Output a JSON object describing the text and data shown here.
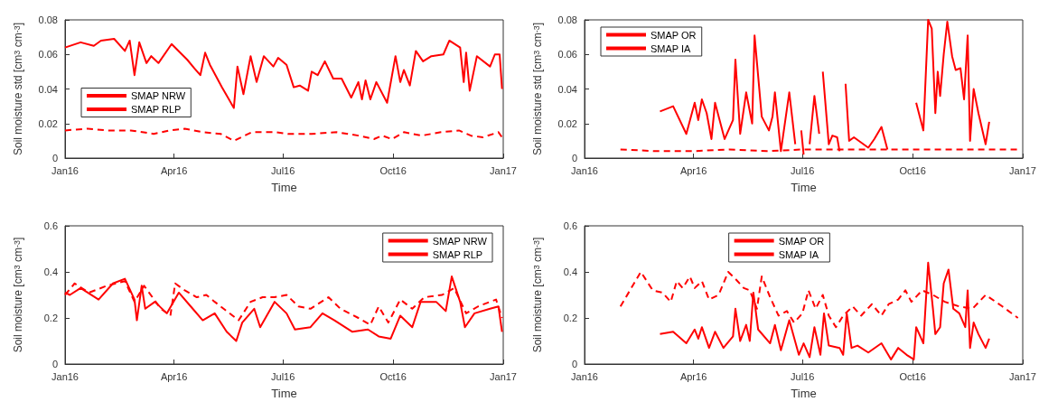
{
  "chart_data": [
    {
      "type": "line",
      "xlabel": "Time",
      "ylabel": "Soil moisture std [cm$^{3}$ cm$^{-3}$]",
      "xlim": [
        "2016-01-01",
        "2017-01-01"
      ],
      "xticks": [
        {
          "value": "2016-01-01",
          "label": "Jan16"
        },
        {
          "value": "2016-04-01",
          "label": "Apr16"
        },
        {
          "value": "2016-07-01",
          "label": "Jul16"
        },
        {
          "value": "2016-10-01",
          "label": "Oct16"
        },
        {
          "value": "2017-01-01",
          "label": "Jan17"
        }
      ],
      "ylim": [
        0,
        0.08
      ],
      "yticks": [
        0,
        0.02,
        0.04,
        0.06,
        0.08
      ],
      "legend": "left",
      "grid": false,
      "marker": "none",
      "series": [
        {
          "name": "SMAP NRW",
          "color": "#ff0000",
          "line_style": "solid",
          "x": [
            "2016-01-01",
            "2016-01-14",
            "2016-01-25",
            "2016-01-31",
            "2016-02-11",
            "2016-02-20",
            "2016-02-24",
            "2016-02-28",
            "2016-03-03",
            "2016-03-09",
            "2016-03-13",
            "2016-03-19",
            "2016-03-30",
            "2016-04-12",
            "2016-04-18",
            "2016-04-23",
            "2016-04-27",
            "2016-05-01",
            "2016-05-11",
            "2016-05-21",
            "2016-05-24",
            "2016-05-29",
            "2016-06-04",
            "2016-06-09",
            "2016-06-15",
            "2016-06-23",
            "2016-06-27",
            "2016-07-04",
            "2016-07-10",
            "2016-07-15",
            "2016-07-22",
            "2016-07-25",
            "2016-07-30",
            "2016-08-05",
            "2016-08-12",
            "2016-08-19",
            "2016-08-27",
            "2016-09-02",
            "2016-09-05",
            "2016-09-08",
            "2016-09-12",
            "2016-09-17",
            "2016-09-26",
            "2016-10-03",
            "2016-10-07",
            "2016-10-10",
            "2016-10-15",
            "2016-10-20",
            "2016-10-26",
            "2016-11-02",
            "2016-11-12",
            "2016-11-17",
            "2016-11-26",
            "2016-11-29",
            "2016-12-01",
            "2016-12-04",
            "2016-12-10",
            "2016-12-21",
            "2016-12-25",
            "2016-12-29",
            "2016-12-31"
          ],
          "values": [
            0.064,
            0.067,
            0.065,
            0.068,
            0.069,
            0.062,
            0.068,
            0.048,
            0.067,
            0.055,
            0.059,
            0.055,
            0.066,
            0.057,
            0.052,
            0.048,
            0.061,
            0.054,
            0.041,
            0.029,
            0.053,
            0.037,
            0.059,
            0.044,
            0.059,
            0.053,
            0.058,
            0.054,
            0.041,
            0.042,
            0.039,
            0.05,
            0.048,
            0.056,
            0.046,
            0.046,
            0.035,
            0.044,
            0.034,
            0.045,
            0.034,
            0.044,
            0.032,
            0.059,
            0.044,
            0.051,
            0.042,
            0.062,
            0.056,
            0.059,
            0.06,
            0.068,
            0.064,
            0.044,
            0.061,
            0.039,
            0.059,
            0.053,
            0.06,
            0.06,
            0.04
          ]
        },
        {
          "name": "SMAP RLP",
          "color": "#ff0000",
          "line_style": "dashed",
          "x": [
            "2016-01-01",
            "2016-01-20",
            "2016-02-05",
            "2016-02-25",
            "2016-03-15",
            "2016-03-28",
            "2016-04-10",
            "2016-04-25",
            "2016-05-10",
            "2016-05-21",
            "2016-06-05",
            "2016-06-25",
            "2016-07-05",
            "2016-07-25",
            "2016-08-15",
            "2016-09-02",
            "2016-09-15",
            "2016-09-22",
            "2016-09-30",
            "2016-10-10",
            "2016-10-25",
            "2016-11-10",
            "2016-11-25",
            "2016-12-05",
            "2016-12-15",
            "2016-12-28",
            "2016-12-31"
          ],
          "values": [
            0.016,
            0.017,
            0.016,
            0.016,
            0.014,
            0.016,
            0.017,
            0.015,
            0.014,
            0.01,
            0.015,
            0.015,
            0.014,
            0.014,
            0.015,
            0.013,
            0.011,
            0.013,
            0.011,
            0.015,
            0.013,
            0.015,
            0.016,
            0.013,
            0.012,
            0.015,
            0.012
          ]
        }
      ]
    },
    {
      "type": "line",
      "xlabel": "Time",
      "ylabel": "Soil moisture std [cm$^{3}$ cm$^{-3}$]",
      "xlim": [
        "2016-01-01",
        "2017-01-01"
      ],
      "xticks": [
        {
          "value": "2016-01-01",
          "label": "Jan16"
        },
        {
          "value": "2016-04-01",
          "label": "Apr16"
        },
        {
          "value": "2016-07-01",
          "label": "Jul16"
        },
        {
          "value": "2016-10-01",
          "label": "Oct16"
        },
        {
          "value": "2017-01-01",
          "label": "Jan17"
        }
      ],
      "ylim": [
        0,
        0.08
      ],
      "yticks": [
        0,
        0.02,
        0.04,
        0.06,
        0.08
      ],
      "legend": "top left",
      "grid": false,
      "marker": "none",
      "series": [
        {
          "name": "SMAP OR",
          "color": "#ff0000",
          "line_style": "solid",
          "x": [
            "2016-03-04",
            "2016-03-15",
            "2016-03-26",
            "2016-04-02",
            "2016-04-05",
            "2016-04-08",
            "2016-04-12",
            "2016-04-16",
            "2016-04-19",
            "2016-04-27",
            "2016-05-04",
            "2016-05-06",
            "2016-05-10",
            "2016-05-15",
            "2016-05-20",
            "2016-05-22",
            "2016-05-28",
            "2016-06-03",
            "2016-06-06",
            "2016-06-08",
            "2016-06-13",
            "2016-06-20",
            "2016-06-25",
            "2016-06-27",
            "2016-06-30",
            "2016-07-02",
            "2016-07-04",
            "2016-07-07",
            "2016-07-11",
            "2016-07-15",
            "2016-07-16",
            "2016-07-18",
            "2016-07-23",
            "2016-07-26",
            "2016-07-30",
            "2016-08-01",
            "2016-08-02",
            "2016-08-06",
            "2016-08-09",
            "2016-08-13",
            "2016-08-25",
            "2016-08-30",
            "2016-09-05",
            "2016-09-10",
            "2016-09-20",
            "2016-10-04",
            "2016-10-10",
            "2016-10-14",
            "2016-10-17",
            "2016-10-20",
            "2016-10-22",
            "2016-10-24",
            "2016-10-27",
            "2016-10-30",
            "2016-11-03",
            "2016-11-06",
            "2016-11-10",
            "2016-11-13",
            "2016-11-16",
            "2016-11-18",
            "2016-11-21",
            "2016-11-25",
            "2016-12-01",
            "2016-12-04"
          ],
          "values": [
            0.027,
            0.03,
            0.014,
            0.032,
            0.022,
            0.034,
            0.026,
            0.011,
            0.032,
            0.011,
            0.022,
            0.057,
            0.014,
            0.038,
            0.02,
            0.071,
            0.024,
            0.016,
            0.024,
            0.038,
            0.004,
            0.038,
            0.008,
            null,
            0.016,
            0.002,
            null,
            0.008,
            0.036,
            0.014,
            null,
            0.05,
            0.008,
            0.013,
            0.012,
            0.004,
            null,
            0.043,
            0.01,
            0.012,
            0.006,
            0.011,
            0.018,
            0.005,
            null,
            0.032,
            0.016,
            0.08,
            0.075,
            0.026,
            0.05,
            0.036,
            0.06,
            0.079,
            0.059,
            0.051,
            0.052,
            0.034,
            0.071,
            0.01,
            0.04,
            0.026,
            0.008,
            0.021
          ]
        },
        {
          "name": "SMAP IA",
          "color": "#ff0000",
          "line_style": "dashed",
          "x": [
            "2016-01-31",
            "2016-03-01",
            "2016-04-01",
            "2016-05-01",
            "2016-06-01",
            "2016-07-01",
            "2016-08-01",
            "2016-09-01",
            "2016-10-01",
            "2016-11-01",
            "2016-12-01",
            "2016-12-28"
          ],
          "values": [
            0.005,
            0.004,
            0.004,
            0.005,
            0.004,
            0.005,
            0.005,
            0.005,
            0.005,
            0.005,
            0.005,
            0.005
          ]
        }
      ]
    },
    {
      "type": "line",
      "xlabel": "Time",
      "ylabel": "Soil moisture [cm$^{3}$ cm$^{-3}$]",
      "xlim": [
        "2016-01-01",
        "2017-01-01"
      ],
      "xticks": [
        {
          "value": "2016-01-01",
          "label": "Jan16"
        },
        {
          "value": "2016-04-01",
          "label": "Apr16"
        },
        {
          "value": "2016-07-01",
          "label": "Jul16"
        },
        {
          "value": "2016-10-01",
          "label": "Oct16"
        },
        {
          "value": "2017-01-01",
          "label": "Jan17"
        }
      ],
      "ylim": [
        0,
        0.6
      ],
      "yticks": [
        0,
        0.2,
        0.4,
        0.6
      ],
      "legend": "top right",
      "grid": false,
      "marker": "none",
      "series": [
        {
          "name": "SMAP NRW",
          "color": "#ff0000",
          "line_style": "solid",
          "x": [
            "2016-01-01",
            "2016-01-05",
            "2016-01-14",
            "2016-01-29",
            "2016-02-10",
            "2016-02-20",
            "2016-02-28",
            "2016-03-01",
            "2016-03-05",
            "2016-03-08",
            "2016-03-16",
            "2016-03-26",
            "2016-04-05",
            "2016-04-15",
            "2016-04-25",
            "2016-05-05",
            "2016-05-15",
            "2016-05-23",
            "2016-05-28",
            "2016-06-07",
            "2016-06-12",
            "2016-06-24",
            "2016-07-04",
            "2016-07-11",
            "2016-07-24",
            "2016-08-03",
            "2016-08-13",
            "2016-08-28",
            "2016-09-10",
            "2016-09-19",
            "2016-09-29",
            "2016-10-07",
            "2016-10-17",
            "2016-10-24",
            "2016-11-06",
            "2016-11-14",
            "2016-11-19",
            "2016-11-26",
            "2016-11-30",
            "2016-12-08",
            "2016-12-21",
            "2016-12-28",
            "2016-12-31"
          ],
          "values": [
            0.31,
            0.3,
            0.33,
            0.28,
            0.35,
            0.37,
            0.28,
            0.19,
            0.34,
            0.24,
            0.27,
            0.22,
            0.31,
            0.25,
            0.19,
            0.22,
            0.14,
            0.1,
            0.18,
            0.24,
            0.16,
            0.27,
            0.22,
            0.15,
            0.16,
            0.22,
            0.19,
            0.14,
            0.15,
            0.12,
            0.11,
            0.21,
            0.16,
            0.27,
            0.27,
            0.23,
            0.38,
            0.27,
            0.16,
            0.22,
            0.24,
            0.25,
            0.14
          ]
        },
        {
          "name": "SMAP RLP",
          "color": "#ff0000",
          "line_style": "dashed",
          "x": [
            "2016-01-01",
            "2016-01-09",
            "2016-01-21",
            "2016-02-05",
            "2016-02-20",
            "2016-02-28",
            "2016-03-07",
            "2016-03-21",
            "2016-03-29",
            "2016-04-02",
            "2016-04-10",
            "2016-04-20",
            "2016-04-28",
            "2016-05-05",
            "2016-05-15",
            "2016-05-25",
            "2016-06-04",
            "2016-06-14",
            "2016-06-24",
            "2016-07-04",
            "2016-07-14",
            "2016-07-24",
            "2016-08-08",
            "2016-08-18",
            "2016-09-02",
            "2016-09-12",
            "2016-09-19",
            "2016-09-27",
            "2016-10-07",
            "2016-10-17",
            "2016-10-27",
            "2016-11-11",
            "2016-11-21",
            "2016-12-01",
            "2016-12-11",
            "2016-12-26",
            "2016-12-31"
          ],
          "values": [
            0.3,
            0.35,
            0.31,
            0.34,
            0.36,
            0.27,
            0.34,
            0.24,
            0.21,
            0.35,
            0.32,
            0.29,
            0.3,
            0.27,
            0.23,
            0.19,
            0.27,
            0.29,
            0.29,
            0.3,
            0.25,
            0.24,
            0.29,
            0.24,
            0.2,
            0.17,
            0.25,
            0.18,
            0.28,
            0.24,
            0.29,
            0.3,
            0.33,
            0.22,
            0.25,
            0.28,
            0.2
          ]
        }
      ]
    },
    {
      "type": "line",
      "xlabel": "Time",
      "ylabel": "Soil moisture [cm$^{3}$ cm$^{-3}$]",
      "xlim": [
        "2016-01-01",
        "2017-01-01"
      ],
      "xticks": [
        {
          "value": "2016-01-01",
          "label": "Jan16"
        },
        {
          "value": "2016-04-01",
          "label": "Apr16"
        },
        {
          "value": "2016-07-01",
          "label": "Jul16"
        },
        {
          "value": "2016-10-01",
          "label": "Oct16"
        },
        {
          "value": "2017-01-01",
          "label": "Jan17"
        }
      ],
      "ylim": [
        0,
        0.6
      ],
      "yticks": [
        0,
        0.2,
        0.4,
        0.6
      ],
      "legend": "top",
      "grid": false,
      "marker": "none",
      "series": [
        {
          "name": "SMAP OR",
          "color": "#ff0000",
          "line_style": "solid",
          "x": [
            "2016-03-04",
            "2016-03-15",
            "2016-03-26",
            "2016-04-02",
            "2016-04-05",
            "2016-04-08",
            "2016-04-14",
            "2016-04-19",
            "2016-04-26",
            "2016-05-04",
            "2016-05-06",
            "2016-05-10",
            "2016-05-15",
            "2016-05-18",
            "2016-05-21",
            "2016-05-25",
            "2016-06-04",
            "2016-06-08",
            "2016-06-13",
            "2016-06-20",
            "2016-06-28",
            "2016-07-02",
            "2016-07-07",
            "2016-07-11",
            "2016-07-16",
            "2016-07-19",
            "2016-07-23",
            "2016-08-01",
            "2016-08-04",
            "2016-08-07",
            "2016-08-11",
            "2016-08-16",
            "2016-08-25",
            "2016-09-05",
            "2016-09-13",
            "2016-09-19",
            "2016-09-26",
            "2016-10-02",
            "2016-10-04",
            "2016-10-10",
            "2016-10-14",
            "2016-10-18",
            "2016-10-20",
            "2016-10-24",
            "2016-10-27",
            "2016-10-31",
            "2016-11-04",
            "2016-11-09",
            "2016-11-14",
            "2016-11-16",
            "2016-11-18",
            "2016-11-21",
            "2016-11-25",
            "2016-12-01",
            "2016-12-04"
          ],
          "values": [
            0.13,
            0.14,
            0.09,
            0.15,
            0.11,
            0.16,
            0.07,
            0.14,
            0.07,
            0.12,
            0.24,
            0.1,
            0.17,
            0.1,
            0.31,
            0.15,
            0.09,
            0.17,
            0.06,
            0.19,
            0.04,
            0.09,
            0.03,
            0.16,
            0.04,
            0.22,
            0.08,
            0.07,
            0.04,
            0.22,
            0.07,
            0.08,
            0.05,
            0.09,
            0.02,
            0.07,
            0.04,
            0.02,
            0.16,
            0.09,
            0.44,
            0.24,
            0.13,
            0.16,
            0.35,
            0.41,
            0.24,
            0.22,
            0.16,
            0.32,
            0.07,
            0.18,
            0.13,
            0.07,
            0.11
          ]
        },
        {
          "name": "SMAP IA",
          "color": "#ff0000",
          "line_style": "dashed",
          "x": [
            "2016-01-31",
            "2016-02-17",
            "2016-02-27",
            "2016-03-06",
            "2016-03-13",
            "2016-03-18",
            "2016-03-23",
            "2016-03-29",
            "2016-04-02",
            "2016-04-08",
            "2016-04-14",
            "2016-04-22",
            "2016-04-30",
            "2016-05-06",
            "2016-05-13",
            "2016-05-18",
            "2016-05-24",
            "2016-05-28",
            "2016-06-04",
            "2016-06-11",
            "2016-06-18",
            "2016-06-24",
            "2016-07-01",
            "2016-07-06",
            "2016-07-12",
            "2016-07-18",
            "2016-07-23",
            "2016-07-29",
            "2016-08-04",
            "2016-08-12",
            "2016-08-19",
            "2016-08-28",
            "2016-09-05",
            "2016-09-11",
            "2016-09-19",
            "2016-09-25",
            "2016-09-30",
            "2016-10-09",
            "2016-10-18",
            "2016-10-28",
            "2016-11-09",
            "2016-11-20",
            "2016-12-01",
            "2016-12-15",
            "2016-12-28"
          ],
          "values": [
            0.25,
            0.4,
            0.32,
            0.31,
            0.27,
            0.36,
            0.33,
            0.38,
            0.33,
            0.36,
            0.28,
            0.3,
            0.4,
            0.37,
            0.33,
            0.32,
            0.24,
            0.38,
            0.29,
            0.21,
            0.23,
            0.18,
            0.22,
            0.32,
            0.24,
            0.3,
            0.21,
            0.16,
            0.21,
            0.25,
            0.21,
            0.26,
            0.21,
            0.26,
            0.28,
            0.32,
            0.27,
            0.32,
            0.3,
            0.27,
            0.25,
            0.24,
            0.3,
            0.25,
            0.2
          ]
        }
      ]
    }
  ]
}
